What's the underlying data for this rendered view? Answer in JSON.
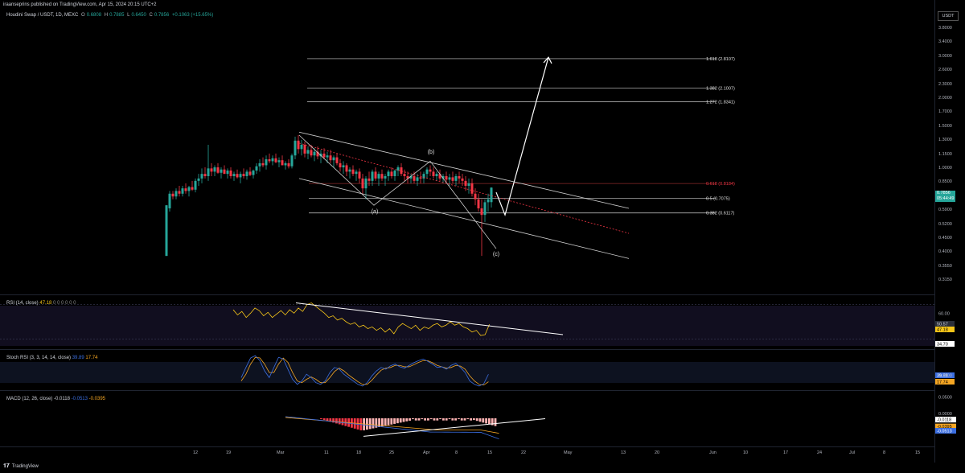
{
  "header": {
    "text": "iraanseprins published on TradingView.com, Apr 15, 2024 20:15 UTC+2"
  },
  "symbol": {
    "name": "Houdini Swap / USDT, 1D, MEXC",
    "o_label": "O",
    "o": "0.6808",
    "h_label": "H",
    "h": "0.7885",
    "l_label": "L",
    "l": "0.6450",
    "c_label": "C",
    "c": "0.7856",
    "change": "+0.1063 (+15.65%)"
  },
  "currency_label": "USDT",
  "footer": {
    "brand": "TradingView"
  },
  "colors": {
    "up": "#26a69a",
    "down": "#f23645",
    "rsi": "#f5c518",
    "stoch_k": "#3b6ee0",
    "stoch_d": "#f5a623",
    "macd": "#3b6ee0",
    "signal": "#f5a623"
  },
  "chart_data": {
    "type": "candlestick",
    "price_axis_ticks": [
      "3.8000",
      "3.4000",
      "3.0000",
      "2.6000",
      "2.3000",
      "2.0000",
      "1.7000",
      "1.5000",
      "1.3000",
      "1.1500",
      "1.0000",
      "0.8500",
      "0.6700",
      "0.5900",
      "0.5200",
      "0.4500",
      "0.4000",
      "0.3550",
      "0.3150"
    ],
    "current_price": "0.7856",
    "countdown": "05:44:49",
    "x_ticks": [
      "12",
      "19",
      "Mar",
      "11",
      "18",
      "25",
      "Apr",
      "8",
      "15",
      "22",
      "May",
      "13",
      "20",
      "Jun",
      "10",
      "17",
      "24",
      "Jul",
      "8",
      "15"
    ],
    "fib_levels": [
      {
        "label": "1.618 (2.8107)",
        "value": 2.8107
      },
      {
        "label": "1.382 (2.1007)",
        "value": 2.1007
      },
      {
        "label": "1.272 (1.8341)",
        "value": 1.8341
      },
      {
        "label": "0.618 (0.8184)",
        "value": 0.8184
      },
      {
        "label": "0.5 (0.7075)",
        "value": 0.7075
      },
      {
        "label": "0.382 (0.6117)",
        "value": 0.6117
      }
    ],
    "wave_labels": [
      "(a)",
      "(b)",
      "(c)"
    ],
    "rsi": {
      "label": "RSI (14, close)",
      "value": "47.18",
      "extra": "0 0 0 0 0 0",
      "axis_ticks": [
        "60.00",
        "40.00"
      ],
      "tags": [
        "50.57",
        "47.18",
        "34.70"
      ],
      "values": [
        64,
        58,
        62,
        55,
        60,
        66,
        63,
        57,
        61,
        55,
        59,
        63,
        58,
        64,
        60,
        66,
        62,
        70,
        72,
        68,
        64,
        60,
        55,
        57,
        52,
        54,
        50,
        47,
        49,
        44,
        46,
        42,
        44,
        40,
        43,
        38,
        42,
        36,
        44,
        48,
        45,
        42,
        46,
        40,
        44,
        42,
        46,
        48,
        44,
        46,
        50,
        46,
        48,
        44,
        42,
        38,
        40,
        34,
        35,
        47
      ]
    },
    "stoch_rsi": {
      "label": "Stoch RSI (3, 3, 14, 14, close)",
      "k": "39.89",
      "d": "17.74",
      "tags": [
        "39.89",
        "17.74"
      ],
      "k_values": [
        30,
        60,
        88,
        95,
        80,
        50,
        30,
        60,
        90,
        85,
        55,
        25,
        10,
        20,
        40,
        30,
        15,
        10,
        20,
        45,
        60,
        55,
        40,
        30,
        20,
        10,
        5,
        15,
        35,
        50,
        60,
        55,
        65,
        70,
        62,
        58,
        66,
        74,
        80,
        85,
        78,
        70,
        60,
        62,
        55,
        66,
        72,
        60,
        45,
        20,
        10,
        5,
        12,
        39.89
      ],
      "d_values": [
        20,
        40,
        70,
        90,
        88,
        70,
        45,
        45,
        70,
        88,
        75,
        45,
        20,
        15,
        25,
        32,
        25,
        15,
        15,
        30,
        48,
        58,
        50,
        38,
        28,
        18,
        10,
        10,
        22,
        38,
        52,
        58,
        60,
        66,
        66,
        62,
        62,
        68,
        75,
        80,
        80,
        74,
        66,
        62,
        58,
        60,
        66,
        64,
        55,
        35,
        20,
        10,
        8,
        17.74
      ]
    },
    "macd": {
      "label": "MACD (12, 26, close)",
      "hist": "-0.0118",
      "macd": "-0.0513",
      "signal": "-0.0395",
      "axis_ticks": [
        "0.1000",
        "0.0500",
        "0.0000"
      ],
      "tags": [
        "-0.0118",
        "-0.0395",
        "-0.0513"
      ]
    }
  }
}
